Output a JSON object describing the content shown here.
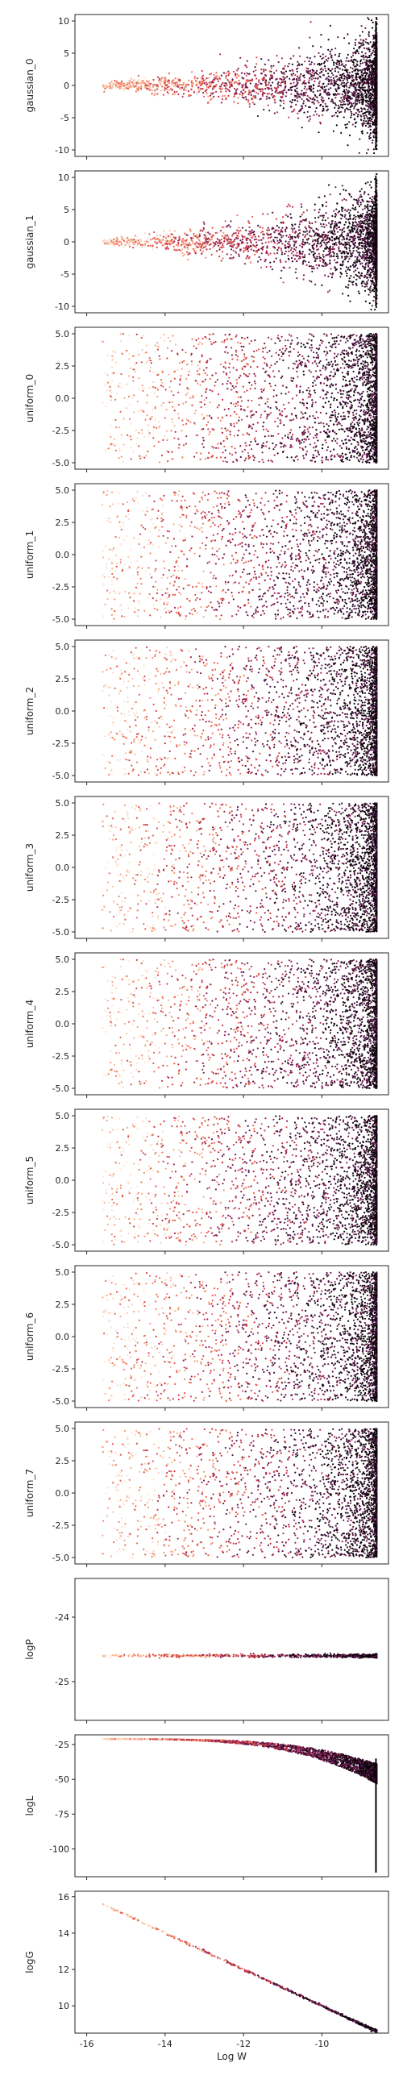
{
  "chart_data": {
    "type": "scatter",
    "layout": "vertical-stack",
    "shared_x": true,
    "xlabel": "Log W",
    "xlim": [
      -16.3,
      -8.3
    ],
    "xticks": [
      -16,
      -14,
      -12,
      -10
    ],
    "colormap": [
      "#fbe3d2",
      "#f6a47c",
      "#ea5f48",
      "#c02f4b",
      "#7e1e55",
      "#3d1243",
      "#0b0405"
    ],
    "colormap_name": "rocket_r",
    "grid": false,
    "legend": null,
    "subplots": [
      {
        "ylabel": "gaussian_0",
        "ylim": [
          -11,
          11
        ],
        "yticks": [
          10,
          5,
          0,
          -5,
          -10
        ],
        "shape": "cone",
        "y_min_at_right": -10,
        "y_max_at_right": 10
      },
      {
        "ylabel": "gaussian_1",
        "ylim": [
          -11,
          11
        ],
        "yticks": [
          10,
          5,
          0,
          -5,
          -10
        ],
        "shape": "cone",
        "y_min_at_right": -10,
        "y_max_at_right": 10
      },
      {
        "ylabel": "uniform_0",
        "ylim": [
          -5.5,
          5.5
        ],
        "yticks": [
          5.0,
          2.5,
          0.0,
          -2.5,
          -5.0
        ],
        "shape": "uniform",
        "y_range": [
          -5,
          5
        ]
      },
      {
        "ylabel": "uniform_1",
        "ylim": [
          -5.5,
          5.5
        ],
        "yticks": [
          5.0,
          2.5,
          0.0,
          -2.5,
          -5.0
        ],
        "shape": "uniform",
        "y_range": [
          -5,
          5
        ]
      },
      {
        "ylabel": "uniform_2",
        "ylim": [
          -5.5,
          5.5
        ],
        "yticks": [
          5.0,
          2.5,
          0.0,
          -2.5,
          -5.0
        ],
        "shape": "uniform",
        "y_range": [
          -5,
          5
        ]
      },
      {
        "ylabel": "uniform_3",
        "ylim": [
          -5.5,
          5.5
        ],
        "yticks": [
          5.0,
          2.5,
          0.0,
          -2.5,
          -5.0
        ],
        "shape": "uniform",
        "y_range": [
          -5,
          5
        ]
      },
      {
        "ylabel": "uniform_4",
        "ylim": [
          -5.5,
          5.5
        ],
        "yticks": [
          5.0,
          2.5,
          0.0,
          -2.5,
          -5.0
        ],
        "shape": "uniform",
        "y_range": [
          -5,
          5
        ]
      },
      {
        "ylabel": "uniform_5",
        "ylim": [
          -5.5,
          5.5
        ],
        "yticks": [
          5.0,
          2.5,
          0.0,
          -2.5,
          -5.0
        ],
        "shape": "uniform",
        "y_range": [
          -5,
          5
        ]
      },
      {
        "ylabel": "uniform_6",
        "ylim": [
          -5.5,
          5.5
        ],
        "yticks": [
          5.0,
          2.5,
          0.0,
          -2.5,
          -5.0
        ],
        "shape": "uniform",
        "y_range": [
          -5,
          5
        ]
      },
      {
        "ylabel": "uniform_7",
        "ylim": [
          -5.5,
          5.5
        ],
        "yticks": [
          5.0,
          2.5,
          0.0,
          -2.5,
          -5.0
        ],
        "shape": "uniform",
        "y_range": [
          -5,
          5
        ]
      },
      {
        "ylabel": "logP",
        "ylim": [
          -25.6,
          -23.4
        ],
        "yticks": [
          -24,
          -25
        ],
        "shape": "line",
        "y_value": -24.6
      },
      {
        "ylabel": "logL",
        "ylim": [
          -120,
          -18
        ],
        "yticks": [
          -25,
          -50,
          -75,
          -100
        ],
        "shape": "logL",
        "y_value": -21,
        "y_drop_to": -117
      },
      {
        "ylabel": "logG",
        "ylim": [
          8.5,
          16.3
        ],
        "yticks": [
          16,
          14,
          12,
          10
        ],
        "shape": "diagonal",
        "start": [
          -16,
          16
        ],
        "end": [
          -8.6,
          8.6
        ]
      }
    ]
  }
}
